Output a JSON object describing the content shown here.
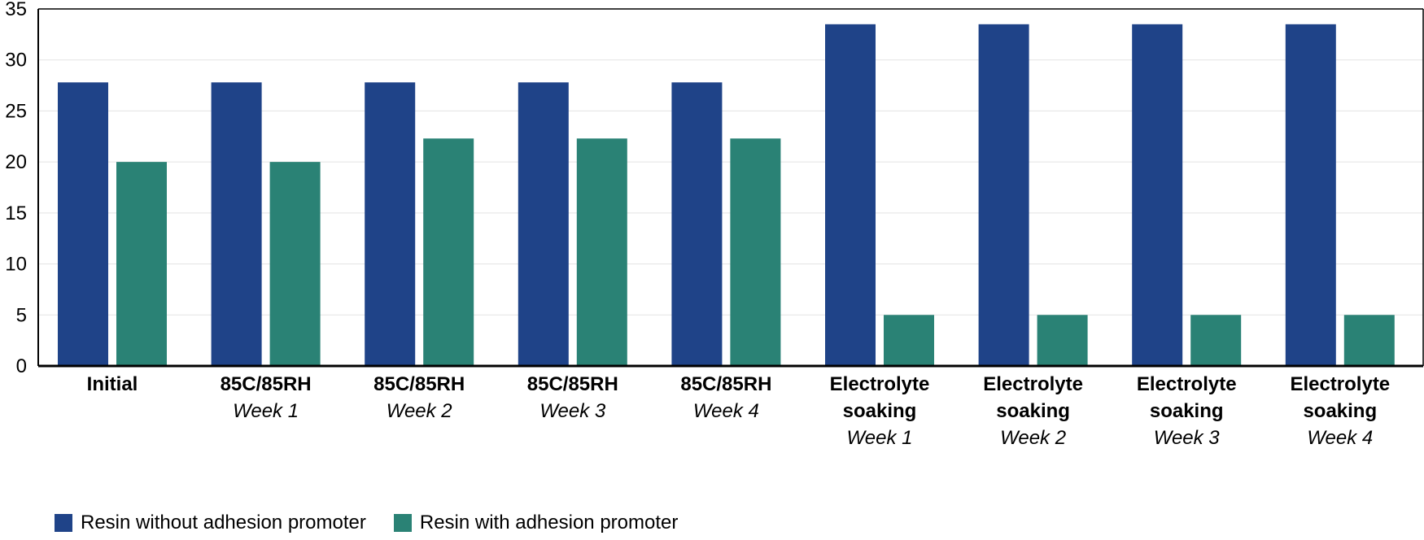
{
  "chart_data": {
    "type": "bar",
    "title": "",
    "xlabel": "",
    "ylabel": "",
    "ylim": [
      0,
      35
    ],
    "yticks": [
      0,
      5,
      10,
      15,
      20,
      25,
      30,
      35
    ],
    "grid": true,
    "legend_position": "bottom-left",
    "categories": [
      {
        "main": "Initial",
        "sub": ""
      },
      {
        "main": "85C/85RH",
        "sub": "Week 1"
      },
      {
        "main": "85C/85RH",
        "sub": "Week 2"
      },
      {
        "main": "85C/85RH",
        "sub": "Week 3"
      },
      {
        "main": "85C/85RH",
        "sub": "Week 4"
      },
      {
        "main": "Electrolyte soaking",
        "sub": "Week 1"
      },
      {
        "main": "Electrolyte soaking",
        "sub": "Week 2"
      },
      {
        "main": "Electrolyte soaking",
        "sub": "Week 3"
      },
      {
        "main": "Electrolyte soaking",
        "sub": "Week 4"
      }
    ],
    "series": [
      {
        "name": "Resin without adhesion promoter",
        "color": "#1f4388",
        "values": [
          27.8,
          27.8,
          27.8,
          27.8,
          27.8,
          33.5,
          33.5,
          33.5,
          33.5
        ]
      },
      {
        "name": "Resin with adhesion promoter",
        "color": "#2a8275",
        "values": [
          20,
          20,
          22.3,
          22.3,
          22.3,
          5,
          5,
          5,
          5
        ]
      }
    ]
  }
}
